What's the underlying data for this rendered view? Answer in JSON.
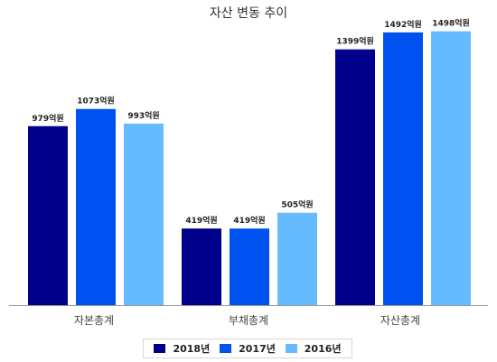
{
  "chart_data": {
    "type": "bar",
    "title": "자산 변동 추이",
    "categories": [
      "자본총계",
      "부채총계",
      "자산총계"
    ],
    "series": [
      {
        "name": "2018년",
        "color": "#00008B",
        "values": [
          979,
          419,
          1399
        ],
        "labels": [
          "979억원",
          "419억원",
          "1399억원"
        ]
      },
      {
        "name": "2017년",
        "color": "#0052F0",
        "values": [
          1073,
          419,
          1492
        ],
        "labels": [
          "1073억원",
          "419억원",
          "1492억원"
        ]
      },
      {
        "name": "2016년",
        "color": "#66BBFF",
        "values": [
          993,
          505,
          1498
        ],
        "labels": [
          "993억원",
          "505억원",
          "1498억원"
        ]
      }
    ],
    "ylim": [
      0,
      1600
    ],
    "grid": false,
    "legend_position": "bottom"
  }
}
